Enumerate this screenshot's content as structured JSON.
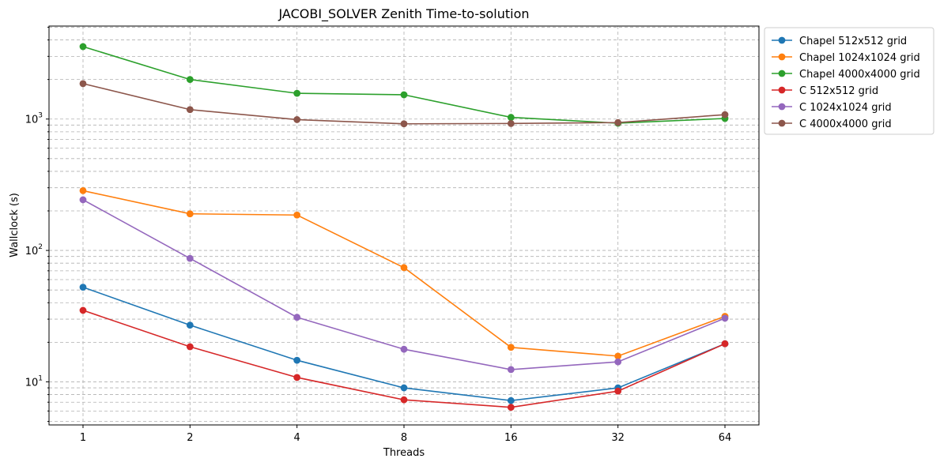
{
  "chart_data": {
    "type": "line",
    "title": "JACOBI_SOLVER Zenith Time-to-solution",
    "xlabel": "Threads",
    "ylabel": "Wallclock (s)",
    "x": [
      1,
      2,
      4,
      8,
      16,
      32,
      64
    ],
    "x_scale": "log2",
    "x_tick_labels": [
      "1",
      "2",
      "4",
      "8",
      "16",
      "32",
      "64"
    ],
    "y_scale": "log10",
    "ylim": [
      4.7,
      5100
    ],
    "y_tick_labels": [
      {
        "base": "10",
        "exp": "1"
      },
      {
        "base": "10",
        "exp": "2"
      },
      {
        "base": "10",
        "exp": "3"
      }
    ],
    "grid": true,
    "legend_position": "outside-upper-right",
    "series": [
      {
        "name": "Chapel 512x512 grid",
        "color": "#1f77b4",
        "values": [
          52.5,
          27,
          14.6,
          9.0,
          7.2,
          9.0,
          19.5
        ]
      },
      {
        "name": "Chapel 1024x1024 grid",
        "color": "#ff7f0e",
        "values": [
          285,
          190,
          186,
          74,
          18.3,
          15.7,
          31.5
        ]
      },
      {
        "name": "Chapel 4000x4000 grid",
        "color": "#2ca02c",
        "values": [
          3560,
          2000,
          1570,
          1530,
          1030,
          930,
          1010
        ]
      },
      {
        "name": "C 512x512 grid",
        "color": "#d62728",
        "values": [
          35,
          18.5,
          10.8,
          7.3,
          6.4,
          8.5,
          19.5
        ]
      },
      {
        "name": "C 1024x1024 grid",
        "color": "#9467bd",
        "values": [
          243,
          87,
          31,
          17.7,
          12.4,
          14.2,
          30.5
        ]
      },
      {
        "name": "C 4000x4000 grid",
        "color": "#8c564b",
        "values": [
          1860,
          1180,
          990,
          920,
          925,
          940,
          1080
        ]
      }
    ]
  }
}
